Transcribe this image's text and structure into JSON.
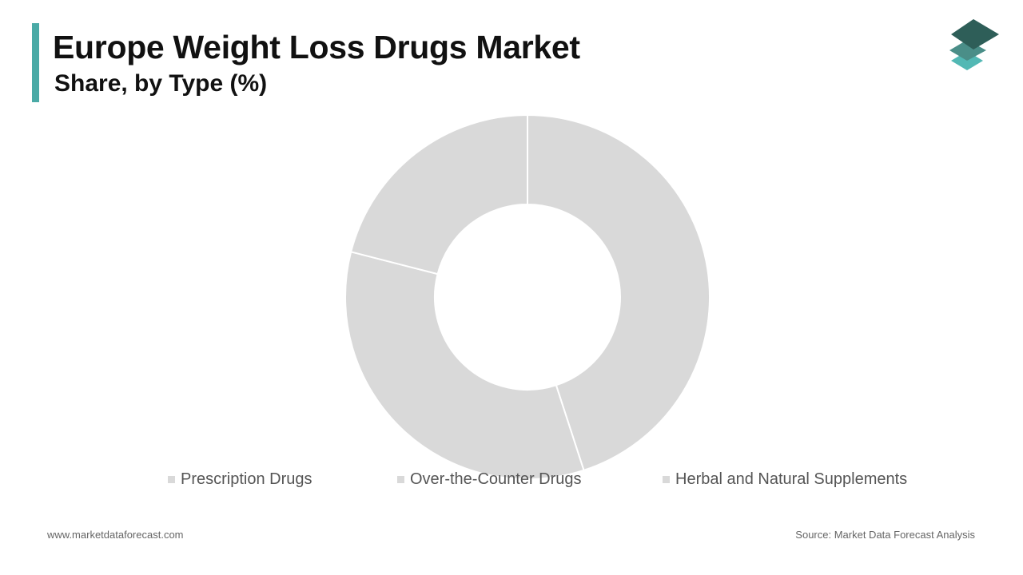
{
  "header": {
    "title": "Europe Weight Loss Drugs Market",
    "subtitle": "Share, by Type (%)"
  },
  "logo": {
    "icon": "layered-diamonds-logo-icon",
    "colors": [
      "#2e5e58",
      "#4a8e88",
      "#52b8b4"
    ]
  },
  "colors": {
    "accent": "#4aaaa6",
    "slice": "#d9d9d9",
    "separator": "#ffffff"
  },
  "chart_data": {
    "type": "pie",
    "donut": true,
    "categories": [
      "Prescription Drugs",
      "Over-the-Counter Drugs",
      "Herbal and Natural Supplements"
    ],
    "values": [
      45,
      34,
      21
    ],
    "unit": "%",
    "legend_position": "bottom"
  },
  "footer": {
    "website": "www.marketdataforecast.com",
    "source": "Source: Market Data Forecast Analysis"
  }
}
